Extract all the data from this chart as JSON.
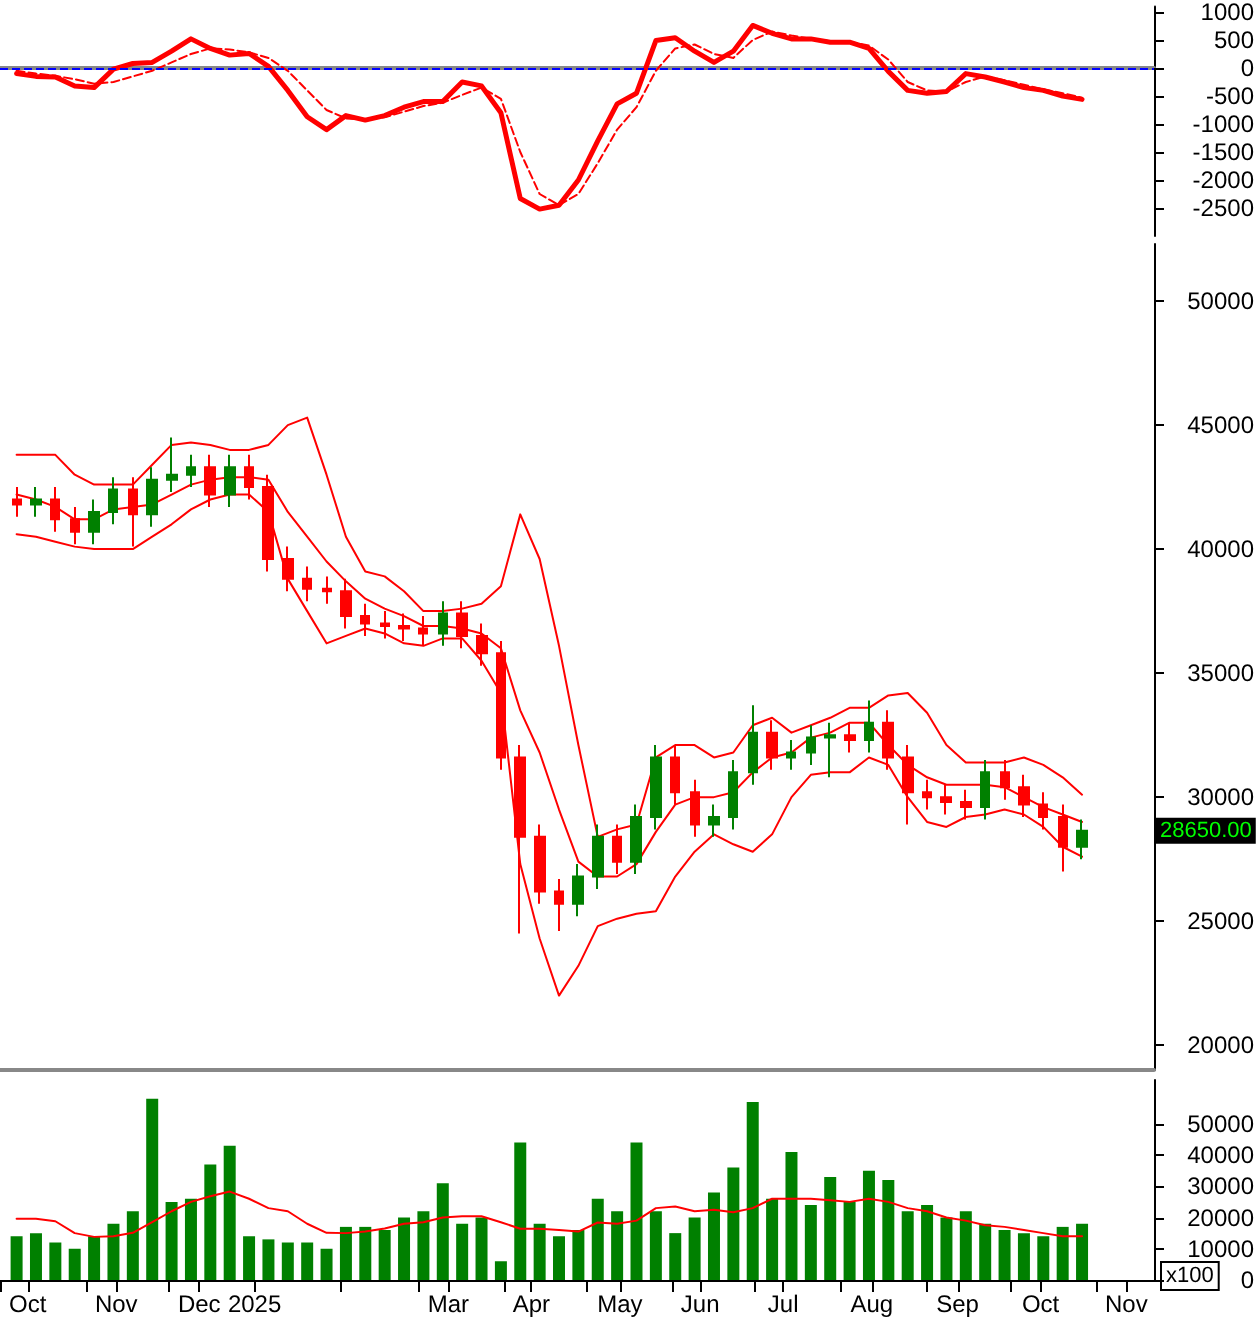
{
  "chart_data": [
    {
      "type": "line",
      "x": [
        "2024-10-07",
        "2024-10-14",
        "2024-10-21",
        "2024-10-28",
        "2024-11-04",
        "2024-11-11",
        "2024-11-18",
        "2024-11-25",
        "2024-12-02",
        "2024-12-09",
        "2024-12-16",
        "2024-12-23",
        "2024-12-30",
        "2025-01-06",
        "2025-01-13",
        "2025-01-20",
        "2025-01-27",
        "2025-02-03",
        "2025-02-10",
        "2025-02-17",
        "2025-02-24",
        "2025-03-03",
        "2025-03-10",
        "2025-03-17",
        "2025-03-24",
        "2025-03-31",
        "2025-04-07",
        "2025-04-14",
        "2025-04-21",
        "2025-04-28",
        "2025-05-05",
        "2025-05-12",
        "2025-05-19",
        "2025-05-26",
        "2025-06-02",
        "2025-06-09",
        "2025-06-16",
        "2025-06-23",
        "2025-06-30",
        "2025-07-07",
        "2025-07-14",
        "2025-07-21",
        "2025-07-28",
        "2025-08-04",
        "2025-08-11",
        "2025-08-18",
        "2025-08-25",
        "2025-09-01",
        "2025-09-08",
        "2025-09-15",
        "2025-09-22",
        "2025-09-29",
        "2025-10-06",
        "2025-10-13",
        "2025-10-20",
        "2025-10-27"
      ],
      "xlim": [
        "2024-10-01",
        "2025-11-22"
      ],
      "ylim": [
        -3000,
        1100
      ],
      "yticks": [
        -2500,
        -2000,
        -1500,
        -1000,
        -500,
        0,
        500,
        1000
      ],
      "tick_labels": "y",
      "marker": "none",
      "ref_lines": [
        {
          "axis": "y",
          "value": 0,
          "color": "#0000ff",
          "line_style": "dashed"
        }
      ],
      "series": [
        {
          "color": "#ff0000",
          "values": [
            -100,
            -150,
            -160,
            -320,
            -350,
            -20,
            80,
            100,
            300,
            520,
            350,
            230,
            260,
            30,
            -400,
            -870,
            -1100,
            -850,
            -930,
            -850,
            -700,
            -600,
            -600,
            -250,
            -320,
            -800,
            -2330,
            -2520,
            -2450,
            -2000,
            -1300,
            -640,
            -450,
            490,
            540,
            300,
            100,
            300,
            760,
            620,
            520,
            520,
            460,
            460,
            350,
            -60,
            -400,
            -450,
            -420,
            -100,
            -160,
            -250,
            -350,
            -400,
            -500,
            -560
          ]
        },
        {
          "color": "#ff0000",
          "line_style": "dashed",
          "values": [
            -50,
            -100,
            -140,
            -200,
            -280,
            -250,
            -150,
            -50,
            100,
            250,
            350,
            330,
            280,
            180,
            -50,
            -400,
            -750,
            -900,
            -920,
            -880,
            -780,
            -680,
            -620,
            -480,
            -350,
            -550,
            -1500,
            -2250,
            -2450,
            -2250,
            -1700,
            -1100,
            -700,
            -50,
            350,
            420,
            250,
            180,
            500,
            650,
            580,
            520,
            480,
            470,
            400,
            150,
            -250,
            -400,
            -420,
            -250,
            -150,
            -220,
            -300,
            -380,
            -450,
            -530
          ]
        }
      ]
    },
    {
      "type": "candlestick",
      "x": [
        "2024-10-07",
        "2024-10-14",
        "2024-10-21",
        "2024-10-28",
        "2024-11-04",
        "2024-11-11",
        "2024-11-18",
        "2024-11-25",
        "2024-12-02",
        "2024-12-09",
        "2024-12-16",
        "2024-12-23",
        "2024-12-30",
        "2025-01-06",
        "2025-01-13",
        "2025-01-20",
        "2025-01-27",
        "2025-02-03",
        "2025-02-10",
        "2025-02-17",
        "2025-02-24",
        "2025-03-03",
        "2025-03-10",
        "2025-03-17",
        "2025-03-24",
        "2025-03-31",
        "2025-04-07",
        "2025-04-14",
        "2025-04-21",
        "2025-04-28",
        "2025-05-05",
        "2025-05-12",
        "2025-05-19",
        "2025-05-26",
        "2025-06-02",
        "2025-06-09",
        "2025-06-16",
        "2025-06-23",
        "2025-06-30",
        "2025-07-07",
        "2025-07-14",
        "2025-07-21",
        "2025-07-28",
        "2025-08-04",
        "2025-08-11",
        "2025-08-18",
        "2025-08-25",
        "2025-09-01",
        "2025-09-08",
        "2025-09-15",
        "2025-09-22",
        "2025-09-29",
        "2025-10-06",
        "2025-10-13",
        "2025-10-20",
        "2025-10-27"
      ],
      "ohlc": [
        [
          42000,
          42500,
          41300,
          41800
        ],
        [
          41800,
          42500,
          41300,
          42000
        ],
        [
          42000,
          42500,
          40700,
          41200
        ],
        [
          41200,
          41700,
          40200,
          40700
        ],
        [
          40700,
          42000,
          40200,
          41500
        ],
        [
          41500,
          42900,
          41000,
          42400
        ],
        [
          42400,
          42900,
          40100,
          41400
        ],
        [
          41400,
          43300,
          40900,
          42800
        ],
        [
          42800,
          44500,
          42300,
          43000
        ],
        [
          43000,
          43800,
          42500,
          43300
        ],
        [
          43300,
          43800,
          41700,
          42200
        ],
        [
          42200,
          43800,
          41700,
          43300
        ],
        [
          43300,
          43800,
          42000,
          42500
        ],
        [
          42500,
          43000,
          39100,
          39600
        ],
        [
          39600,
          40100,
          38300,
          38800
        ],
        [
          38800,
          39300,
          37900,
          38400
        ],
        [
          38400,
          38900,
          37800,
          38300
        ],
        [
          38300,
          38800,
          36800,
          37300
        ],
        [
          37300,
          37800,
          36500,
          37000
        ],
        [
          37000,
          37500,
          36400,
          36900
        ],
        [
          36900,
          37400,
          36300,
          36800
        ],
        [
          36800,
          37300,
          36100,
          36600
        ],
        [
          36600,
          37900,
          36100,
          37400
        ],
        [
          37400,
          37900,
          36000,
          36500
        ],
        [
          36500,
          37000,
          35300,
          35800
        ],
        [
          35800,
          36300,
          31100,
          31600
        ],
        [
          31600,
          32100,
          24500,
          28400
        ],
        [
          28400,
          28900,
          25700,
          26200
        ],
        [
          26200,
          26700,
          24600,
          25700
        ],
        [
          25700,
          27300,
          25200,
          26800
        ],
        [
          26800,
          28900,
          26300,
          28400
        ],
        [
          28400,
          28900,
          26900,
          27400
        ],
        [
          27400,
          29700,
          26900,
          29200
        ],
        [
          29200,
          32100,
          28700,
          31600
        ],
        [
          31600,
          32100,
          29700,
          30200
        ],
        [
          30200,
          30700,
          28400,
          28900
        ],
        [
          28900,
          29700,
          28400,
          29200
        ],
        [
          29200,
          31500,
          28700,
          31000
        ],
        [
          31000,
          33700,
          30500,
          32600
        ],
        [
          32600,
          33100,
          31100,
          31600
        ],
        [
          31600,
          32300,
          31100,
          31800
        ],
        [
          31800,
          32900,
          31300,
          32400
        ],
        [
          32400,
          33000,
          30800,
          32500
        ],
        [
          32500,
          33000,
          31800,
          32300
        ],
        [
          32300,
          33900,
          31800,
          33000
        ],
        [
          33000,
          33500,
          31100,
          31600
        ],
        [
          31600,
          32100,
          28900,
          30200
        ],
        [
          30200,
          30700,
          29500,
          30000
        ],
        [
          30000,
          30500,
          29300,
          29800
        ],
        [
          29800,
          30300,
          29100,
          29600
        ],
        [
          29600,
          31500,
          29100,
          31000
        ],
        [
          31000,
          31500,
          29900,
          30400
        ],
        [
          30400,
          30900,
          29200,
          29700
        ],
        [
          29700,
          30200,
          28700,
          29200
        ],
        [
          29200,
          29700,
          27000,
          28000
        ],
        [
          28000,
          29100,
          27500,
          28650
        ]
      ],
      "colors": [
        "#ff0000",
        "#008000",
        "#ff0000",
        "#ff0000",
        "#008000",
        "#008000",
        "#ff0000",
        "#008000",
        "#008000",
        "#008000",
        "#ff0000",
        "#008000",
        "#ff0000",
        "#ff0000",
        "#ff0000",
        "#ff0000",
        "#ff0000",
        "#ff0000",
        "#ff0000",
        "#ff0000",
        "#ff0000",
        "#ff0000",
        "#008000",
        "#ff0000",
        "#ff0000",
        "#ff0000",
        "#ff0000",
        "#ff0000",
        "#ff0000",
        "#008000",
        "#008000",
        "#ff0000",
        "#008000",
        "#008000",
        "#ff0000",
        "#ff0000",
        "#008000",
        "#008000",
        "#008000",
        "#ff0000",
        "#008000",
        "#008000",
        "#008000",
        "#ff0000",
        "#008000",
        "#ff0000",
        "#ff0000",
        "#ff0000",
        "#ff0000",
        "#ff0000",
        "#008000",
        "#ff0000",
        "#ff0000",
        "#ff0000",
        "#ff0000",
        "#008000"
      ],
      "xlim": [
        "2024-10-01",
        "2025-11-22"
      ],
      "ylim": [
        19000,
        52300
      ],
      "yticks": [
        20000,
        25000,
        30000,
        35000,
        40000,
        45000,
        50000
      ],
      "tick_labels": "y",
      "marker": "none",
      "annotations": [
        "28650.00"
      ],
      "series": [
        {
          "type": "line",
          "color": "#ff0000",
          "values": [
            43800,
            43800,
            43800,
            43000,
            42600,
            42600,
            42600,
            43400,
            44200,
            44300,
            44200,
            44000,
            44000,
            44200,
            45000,
            45300,
            43000,
            40500,
            39100,
            38900,
            38300,
            37500,
            37500,
            37600,
            37800,
            38500,
            41400,
            39600,
            36100,
            32100,
            28400,
            28700,
            28900,
            31600,
            32100,
            32100,
            31600,
            31800,
            32900,
            33200,
            32600,
            32900,
            33200,
            33600,
            33600,
            34100,
            34200,
            33400,
            32100,
            31400,
            31400,
            31400,
            31600,
            31300,
            30800,
            30100
          ]
        },
        {
          "type": "line",
          "color": "#ff0000",
          "values": [
            42200,
            42000,
            41700,
            41200,
            41200,
            41600,
            41700,
            41800,
            42200,
            42600,
            42800,
            42900,
            42900,
            42800,
            41500,
            40500,
            39500,
            38700,
            38000,
            37600,
            37300,
            36900,
            36900,
            36800,
            36600,
            36000,
            33500,
            31800,
            29500,
            27400,
            26800,
            26800,
            27300,
            28600,
            29700,
            30000,
            30000,
            30200,
            31000,
            31600,
            31800,
            32400,
            32600,
            33000,
            33000,
            32100,
            31300,
            30800,
            30500,
            30500,
            30500,
            30400,
            30000,
            29600,
            29300,
            29000
          ]
        },
        {
          "type": "line",
          "color": "#ff0000",
          "values": [
            40600,
            40500,
            40300,
            40100,
            40000,
            40000,
            40000,
            40500,
            41000,
            41600,
            42000,
            42200,
            42200,
            41500,
            38800,
            37500,
            36200,
            36500,
            36800,
            36600,
            36200,
            36100,
            36400,
            36400,
            35500,
            34200,
            27300,
            24300,
            22000,
            23200,
            24800,
            25100,
            25300,
            25400,
            26800,
            27800,
            28500,
            28100,
            27800,
            28500,
            30000,
            30900,
            31000,
            31000,
            31600,
            31300,
            30000,
            29000,
            28800,
            29200,
            29300,
            29500,
            29300,
            28800,
            28000,
            27600
          ]
        }
      ]
    },
    {
      "type": "bar",
      "x": [
        "2024-10-07",
        "2024-10-14",
        "2024-10-21",
        "2024-10-28",
        "2024-11-04",
        "2024-11-11",
        "2024-11-18",
        "2024-11-25",
        "2024-12-02",
        "2024-12-09",
        "2024-12-16",
        "2024-12-23",
        "2024-12-30",
        "2025-01-06",
        "2025-01-13",
        "2025-01-20",
        "2025-01-27",
        "2025-02-03",
        "2025-02-10",
        "2025-02-17",
        "2025-02-24",
        "2025-03-03",
        "2025-03-10",
        "2025-03-17",
        "2025-03-24",
        "2025-03-31",
        "2025-04-07",
        "2025-04-14",
        "2025-04-21",
        "2025-04-28",
        "2025-05-05",
        "2025-05-12",
        "2025-05-19",
        "2025-05-26",
        "2025-06-02",
        "2025-06-09",
        "2025-06-16",
        "2025-06-23",
        "2025-06-30",
        "2025-07-07",
        "2025-07-14",
        "2025-07-21",
        "2025-07-28",
        "2025-08-04",
        "2025-08-11",
        "2025-08-18",
        "2025-08-25",
        "2025-09-01",
        "2025-09-08",
        "2025-09-15",
        "2025-09-22",
        "2025-09-29",
        "2025-10-06",
        "2025-10-13",
        "2025-10-20",
        "2025-10-27"
      ],
      "xlim": [
        "2024-10-01",
        "2025-11-22"
      ],
      "xticks": [
        {
          "value": "2024-10-01",
          "label": null
        },
        {
          "value": "2024-10-11",
          "label": "Oct"
        },
        {
          "value": "2024-11-01",
          "label": null
        },
        {
          "value": "2024-11-12",
          "label": "Nov"
        },
        {
          "value": "2024-12-01",
          "label": null
        },
        {
          "value": "2024-12-12",
          "label": "Dec"
        },
        {
          "value": "2025-01-01",
          "label": "2025"
        },
        {
          "value": "2025-02-01",
          "label": null
        },
        {
          "value": "2025-03-01",
          "label": null
        },
        {
          "value": "2025-03-12",
          "label": "Mar"
        },
        {
          "value": "2025-04-01",
          "label": null
        },
        {
          "value": "2025-04-11",
          "label": "Apr"
        },
        {
          "value": "2025-05-01",
          "label": null
        },
        {
          "value": "2025-05-13",
          "label": "May"
        },
        {
          "value": "2025-06-01",
          "label": null
        },
        {
          "value": "2025-06-11",
          "label": "Jun"
        },
        {
          "value": "2025-07-01",
          "label": null
        },
        {
          "value": "2025-07-11",
          "label": "Jul"
        },
        {
          "value": "2025-08-01",
          "label": null
        },
        {
          "value": "2025-08-12",
          "label": "Aug"
        },
        {
          "value": "2025-09-01",
          "label": null
        },
        {
          "value": "2025-09-12",
          "label": "Sep"
        },
        {
          "value": "2025-10-01",
          "label": null
        },
        {
          "value": "2025-10-12",
          "label": "Oct"
        },
        {
          "value": "2025-11-01",
          "label": null
        },
        {
          "value": "2025-11-12",
          "label": "Nov"
        }
      ],
      "ylim": [
        0,
        64000
      ],
      "yticks": [
        0,
        10000,
        20000,
        30000,
        40000,
        50000
      ],
      "ylabel": "x100",
      "marker": "none",
      "series": [
        {
          "color": "#008000",
          "values": [
            14000,
            15000,
            12000,
            10000,
            14000,
            18000,
            22000,
            58000,
            25000,
            26000,
            37000,
            43000,
            14000,
            13000,
            12000,
            12000,
            10000,
            17000,
            17000,
            16000,
            20000,
            22000,
            31000,
            18000,
            20000,
            6000,
            44000,
            18000,
            14000,
            16000,
            26000,
            22000,
            44000,
            22000,
            15000,
            20000,
            28000,
            36000,
            57000,
            26000,
            41000,
            24000,
            33000,
            25000,
            35000,
            32000,
            22000,
            24000,
            20000,
            22000,
            18000,
            16000,
            15000,
            14000,
            17000,
            18000
          ]
        },
        {
          "type": "line",
          "color": "#ff0000",
          "values": [
            19600,
            19600,
            18800,
            15000,
            13800,
            14000,
            15100,
            18500,
            22000,
            25000,
            26800,
            28300,
            26000,
            23000,
            22000,
            18000,
            15100,
            15000,
            15500,
            16500,
            18000,
            18500,
            20000,
            20400,
            20400,
            18500,
            16400,
            16400,
            16000,
            15500,
            18400,
            18000,
            19000,
            23000,
            23500,
            22000,
            22500,
            21700,
            23000,
            26000,
            26000,
            26000,
            25500,
            25000,
            26000,
            25000,
            23000,
            22000,
            20000,
            19000,
            17500,
            17000,
            16000,
            15000,
            14000,
            14000
          ]
        }
      ]
    }
  ]
}
